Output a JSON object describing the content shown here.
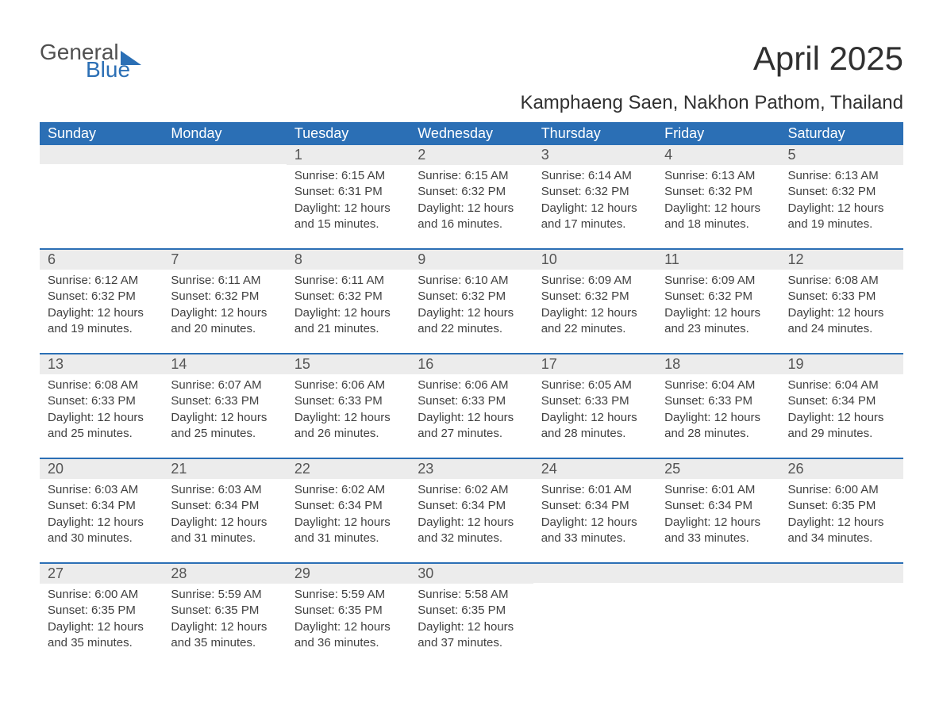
{
  "brand": {
    "part1": "General",
    "part2": "Blue",
    "accent": "#2b6fb5"
  },
  "title": "April 2025",
  "location": "Kamphaeng Saen, Nakhon Pathom, Thailand",
  "colors": {
    "header_bg": "#2b6fb5",
    "daynum_bg": "#ececec",
    "text": "#404040",
    "row_border": "#2b6fb5"
  },
  "fonts": {
    "title_size": 42,
    "location_size": 24,
    "weekday_size": 18,
    "body_size": 15
  },
  "weekdays": [
    "Sunday",
    "Monday",
    "Tuesday",
    "Wednesday",
    "Thursday",
    "Friday",
    "Saturday"
  ],
  "weeks": [
    [
      {
        "num": "",
        "sunrise": "",
        "sunset": "",
        "daylight": ""
      },
      {
        "num": "",
        "sunrise": "",
        "sunset": "",
        "daylight": ""
      },
      {
        "num": "1",
        "sunrise": "Sunrise: 6:15 AM",
        "sunset": "Sunset: 6:31 PM",
        "daylight": "Daylight: 12 hours and 15 minutes."
      },
      {
        "num": "2",
        "sunrise": "Sunrise: 6:15 AM",
        "sunset": "Sunset: 6:32 PM",
        "daylight": "Daylight: 12 hours and 16 minutes."
      },
      {
        "num": "3",
        "sunrise": "Sunrise: 6:14 AM",
        "sunset": "Sunset: 6:32 PM",
        "daylight": "Daylight: 12 hours and 17 minutes."
      },
      {
        "num": "4",
        "sunrise": "Sunrise: 6:13 AM",
        "sunset": "Sunset: 6:32 PM",
        "daylight": "Daylight: 12 hours and 18 minutes."
      },
      {
        "num": "5",
        "sunrise": "Sunrise: 6:13 AM",
        "sunset": "Sunset: 6:32 PM",
        "daylight": "Daylight: 12 hours and 19 minutes."
      }
    ],
    [
      {
        "num": "6",
        "sunrise": "Sunrise: 6:12 AM",
        "sunset": "Sunset: 6:32 PM",
        "daylight": "Daylight: 12 hours and 19 minutes."
      },
      {
        "num": "7",
        "sunrise": "Sunrise: 6:11 AM",
        "sunset": "Sunset: 6:32 PM",
        "daylight": "Daylight: 12 hours and 20 minutes."
      },
      {
        "num": "8",
        "sunrise": "Sunrise: 6:11 AM",
        "sunset": "Sunset: 6:32 PM",
        "daylight": "Daylight: 12 hours and 21 minutes."
      },
      {
        "num": "9",
        "sunrise": "Sunrise: 6:10 AM",
        "sunset": "Sunset: 6:32 PM",
        "daylight": "Daylight: 12 hours and 22 minutes."
      },
      {
        "num": "10",
        "sunrise": "Sunrise: 6:09 AM",
        "sunset": "Sunset: 6:32 PM",
        "daylight": "Daylight: 12 hours and 22 minutes."
      },
      {
        "num": "11",
        "sunrise": "Sunrise: 6:09 AM",
        "sunset": "Sunset: 6:32 PM",
        "daylight": "Daylight: 12 hours and 23 minutes."
      },
      {
        "num": "12",
        "sunrise": "Sunrise: 6:08 AM",
        "sunset": "Sunset: 6:33 PM",
        "daylight": "Daylight: 12 hours and 24 minutes."
      }
    ],
    [
      {
        "num": "13",
        "sunrise": "Sunrise: 6:08 AM",
        "sunset": "Sunset: 6:33 PM",
        "daylight": "Daylight: 12 hours and 25 minutes."
      },
      {
        "num": "14",
        "sunrise": "Sunrise: 6:07 AM",
        "sunset": "Sunset: 6:33 PM",
        "daylight": "Daylight: 12 hours and 25 minutes."
      },
      {
        "num": "15",
        "sunrise": "Sunrise: 6:06 AM",
        "sunset": "Sunset: 6:33 PM",
        "daylight": "Daylight: 12 hours and 26 minutes."
      },
      {
        "num": "16",
        "sunrise": "Sunrise: 6:06 AM",
        "sunset": "Sunset: 6:33 PM",
        "daylight": "Daylight: 12 hours and 27 minutes."
      },
      {
        "num": "17",
        "sunrise": "Sunrise: 6:05 AM",
        "sunset": "Sunset: 6:33 PM",
        "daylight": "Daylight: 12 hours and 28 minutes."
      },
      {
        "num": "18",
        "sunrise": "Sunrise: 6:04 AM",
        "sunset": "Sunset: 6:33 PM",
        "daylight": "Daylight: 12 hours and 28 minutes."
      },
      {
        "num": "19",
        "sunrise": "Sunrise: 6:04 AM",
        "sunset": "Sunset: 6:34 PM",
        "daylight": "Daylight: 12 hours and 29 minutes."
      }
    ],
    [
      {
        "num": "20",
        "sunrise": "Sunrise: 6:03 AM",
        "sunset": "Sunset: 6:34 PM",
        "daylight": "Daylight: 12 hours and 30 minutes."
      },
      {
        "num": "21",
        "sunrise": "Sunrise: 6:03 AM",
        "sunset": "Sunset: 6:34 PM",
        "daylight": "Daylight: 12 hours and 31 minutes."
      },
      {
        "num": "22",
        "sunrise": "Sunrise: 6:02 AM",
        "sunset": "Sunset: 6:34 PM",
        "daylight": "Daylight: 12 hours and 31 minutes."
      },
      {
        "num": "23",
        "sunrise": "Sunrise: 6:02 AM",
        "sunset": "Sunset: 6:34 PM",
        "daylight": "Daylight: 12 hours and 32 minutes."
      },
      {
        "num": "24",
        "sunrise": "Sunrise: 6:01 AM",
        "sunset": "Sunset: 6:34 PM",
        "daylight": "Daylight: 12 hours and 33 minutes."
      },
      {
        "num": "25",
        "sunrise": "Sunrise: 6:01 AM",
        "sunset": "Sunset: 6:34 PM",
        "daylight": "Daylight: 12 hours and 33 minutes."
      },
      {
        "num": "26",
        "sunrise": "Sunrise: 6:00 AM",
        "sunset": "Sunset: 6:35 PM",
        "daylight": "Daylight: 12 hours and 34 minutes."
      }
    ],
    [
      {
        "num": "27",
        "sunrise": "Sunrise: 6:00 AM",
        "sunset": "Sunset: 6:35 PM",
        "daylight": "Daylight: 12 hours and 35 minutes."
      },
      {
        "num": "28",
        "sunrise": "Sunrise: 5:59 AM",
        "sunset": "Sunset: 6:35 PM",
        "daylight": "Daylight: 12 hours and 35 minutes."
      },
      {
        "num": "29",
        "sunrise": "Sunrise: 5:59 AM",
        "sunset": "Sunset: 6:35 PM",
        "daylight": "Daylight: 12 hours and 36 minutes."
      },
      {
        "num": "30",
        "sunrise": "Sunrise: 5:58 AM",
        "sunset": "Sunset: 6:35 PM",
        "daylight": "Daylight: 12 hours and 37 minutes."
      },
      {
        "num": "",
        "sunrise": "",
        "sunset": "",
        "daylight": ""
      },
      {
        "num": "",
        "sunrise": "",
        "sunset": "",
        "daylight": ""
      },
      {
        "num": "",
        "sunrise": "",
        "sunset": "",
        "daylight": ""
      }
    ]
  ]
}
